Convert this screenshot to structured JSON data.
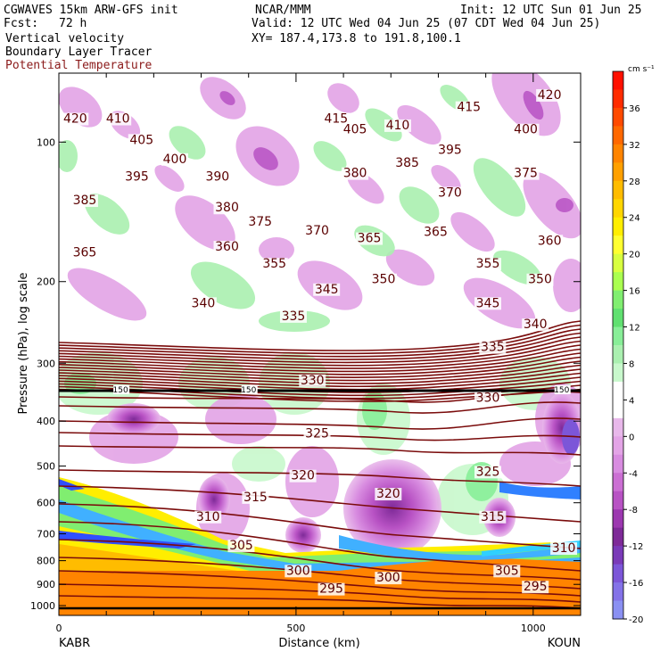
{
  "header": {
    "model": "CGWAVES 15km ARW-GFS init",
    "fcst_label": "Fcst:",
    "fcst_value": "72 h",
    "org": "NCAR/MMM",
    "init": "Init: 12 UTC Sun 01 Jun 25",
    "valid": "Valid: 12 UTC Wed 04 Jun 25 (07 CDT Wed 04 Jun 25)",
    "xy": "XY= 187.4,173.8 to 191.8,100.1",
    "field1": "Vertical velocity",
    "field2": "Boundary Layer Tracer",
    "field3": "Potential Temperature"
  },
  "colors": {
    "theta_contour": "#7a0b0b",
    "field3_text": "#8b1a1a",
    "tropopause_line": "#000000"
  },
  "chart_data": {
    "type": "cross-section",
    "ylabel": "Pressure (hPa), log scale",
    "xlabel": "Distance (km)",
    "x_start_label": "KABR",
    "x_end_label": "KOUN",
    "x_ticks": [
      0,
      500,
      1000
    ],
    "xlim": [
      0,
      1100
    ],
    "y_ticks": [
      100,
      200,
      300,
      400,
      500,
      600,
      700,
      800,
      900,
      1000
    ],
    "y_scale": "log",
    "colorbar": {
      "unit": "cm s⁻¹",
      "labels": [
        36,
        32,
        28,
        24,
        20,
        16,
        12,
        8,
        4,
        0,
        -4,
        -8,
        -12,
        -16,
        -20
      ],
      "swatches": [
        "#ff1000",
        "#ff2c00",
        "#ff4a00",
        "#ff6800",
        "#ff8400",
        "#ffa000",
        "#ffbc00",
        "#ffd600",
        "#ffee00",
        "#ffff30",
        "#d8ff40",
        "#aaff50",
        "#80ee70",
        "#60e070",
        "#88ee98",
        "#aaf0b0",
        "#c8f8cc",
        "#ffffff",
        "#ffffff",
        "#e8b8ea",
        "#e3a4e6",
        "#d88ce0",
        "#cb6fd3",
        "#b852c4",
        "#9c38b0",
        "#7e2a98",
        "#7a3ab8",
        "#7c56d8",
        "#8472e8",
        "#8a90f2"
      ]
    },
    "theta_labels": [
      {
        "x": 10,
        "p": 90,
        "v": "420"
      },
      {
        "x": 100,
        "p": 90,
        "v": "410"
      },
      {
        "x": 150,
        "p": 100,
        "v": "405"
      },
      {
        "x": 220,
        "p": 110,
        "v": "400"
      },
      {
        "x": 310,
        "p": 120,
        "v": "390"
      },
      {
        "x": 560,
        "p": 90,
        "v": "415"
      },
      {
        "x": 600,
        "p": 95,
        "v": "405"
      },
      {
        "x": 690,
        "p": 93,
        "v": "410"
      },
      {
        "x": 840,
        "p": 85,
        "v": "415"
      },
      {
        "x": 1010,
        "p": 80,
        "v": "420"
      },
      {
        "x": 960,
        "p": 95,
        "v": "400"
      },
      {
        "x": 800,
        "p": 105,
        "v": "395"
      },
      {
        "x": 710,
        "p": 112,
        "v": "385"
      },
      {
        "x": 600,
        "p": 118,
        "v": "380"
      },
      {
        "x": 800,
        "p": 130,
        "v": "370"
      },
      {
        "x": 960,
        "p": 118,
        "v": "375"
      },
      {
        "x": 140,
        "p": 120,
        "v": "395"
      },
      {
        "x": 30,
        "p": 135,
        "v": "385"
      },
      {
        "x": 330,
        "p": 140,
        "v": "380"
      },
      {
        "x": 400,
        "p": 150,
        "v": "375"
      },
      {
        "x": 520,
        "p": 157,
        "v": "370"
      },
      {
        "x": 630,
        "p": 163,
        "v": "365"
      },
      {
        "x": 770,
        "p": 158,
        "v": "365"
      },
      {
        "x": 1010,
        "p": 165,
        "v": "360"
      },
      {
        "x": 30,
        "p": 175,
        "v": "365"
      },
      {
        "x": 330,
        "p": 170,
        "v": "360"
      },
      {
        "x": 430,
        "p": 185,
        "v": "355"
      },
      {
        "x": 880,
        "p": 185,
        "v": "355"
      },
      {
        "x": 660,
        "p": 200,
        "v": "350"
      },
      {
        "x": 990,
        "p": 200,
        "v": "350"
      },
      {
        "x": 540,
        "p": 210,
        "v": "345"
      },
      {
        "x": 880,
        "p": 225,
        "v": "345"
      },
      {
        "x": 280,
        "p": 225,
        "v": "340"
      },
      {
        "x": 980,
        "p": 250,
        "v": "340"
      },
      {
        "x": 470,
        "p": 240,
        "v": "335"
      },
      {
        "x": 890,
        "p": 280,
        "v": "335"
      },
      {
        "x": 510,
        "p": 330,
        "v": "330"
      },
      {
        "x": 880,
        "p": 360,
        "v": "330"
      },
      {
        "x": 520,
        "p": 430,
        "v": "325"
      },
      {
        "x": 880,
        "p": 520,
        "v": "325"
      },
      {
        "x": 490,
        "p": 530,
        "v": "320"
      },
      {
        "x": 670,
        "p": 580,
        "v": "320"
      },
      {
        "x": 390,
        "p": 590,
        "v": "315"
      },
      {
        "x": 890,
        "p": 650,
        "v": "315"
      },
      {
        "x": 290,
        "p": 650,
        "v": "310"
      },
      {
        "x": 1040,
        "p": 760,
        "v": "310"
      },
      {
        "x": 360,
        "p": 750,
        "v": "305"
      },
      {
        "x": 920,
        "p": 850,
        "v": "305"
      },
      {
        "x": 480,
        "p": 850,
        "v": "300"
      },
      {
        "x": 670,
        "p": 880,
        "v": "300"
      },
      {
        "x": 550,
        "p": 930,
        "v": "295"
      },
      {
        "x": 980,
        "p": 920,
        "v": "295"
      }
    ],
    "tropopause_labels": [
      {
        "x": 130,
        "p": 160,
        "v": "150"
      },
      {
        "x": 400,
        "p": 160,
        "v": "150"
      },
      {
        "x": 1060,
        "p": 158,
        "v": "150"
      }
    ]
  }
}
